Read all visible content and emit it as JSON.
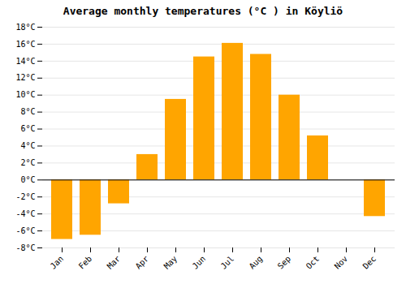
{
  "chart_data": {
    "type": "bar",
    "title": "Average monthly temperatures (°C ) in Köyliö",
    "categories": [
      "Jan",
      "Feb",
      "Mar",
      "Apr",
      "May",
      "Jun",
      "Jul",
      "Aug",
      "Sep",
      "Oct",
      "Nov",
      "Dec"
    ],
    "values": [
      -7.0,
      -6.5,
      -2.8,
      3.0,
      9.5,
      14.5,
      16.1,
      14.8,
      10.0,
      5.2,
      0.0,
      -4.3
    ],
    "color": "#FFA500",
    "ylim": [
      -8,
      18
    ],
    "yticks": [
      {
        "value": -8,
        "label": "-8°C"
      },
      {
        "value": -6,
        "label": "-6°C"
      },
      {
        "value": -4,
        "label": "-4°C"
      },
      {
        "value": -2,
        "label": "-2°C"
      },
      {
        "value": 0,
        "label": "0°C"
      },
      {
        "value": 2,
        "label": "2°C"
      },
      {
        "value": 4,
        "label": "4°C"
      },
      {
        "value": 6,
        "label": "6°C"
      },
      {
        "value": 8,
        "label": "8°C"
      },
      {
        "value": 10,
        "label": "10°C"
      },
      {
        "value": 12,
        "label": "12°C"
      },
      {
        "value": 14,
        "label": "14°C"
      },
      {
        "value": 16,
        "label": "16°C"
      },
      {
        "value": 18,
        "label": "18°C"
      }
    ],
    "grid": true
  }
}
